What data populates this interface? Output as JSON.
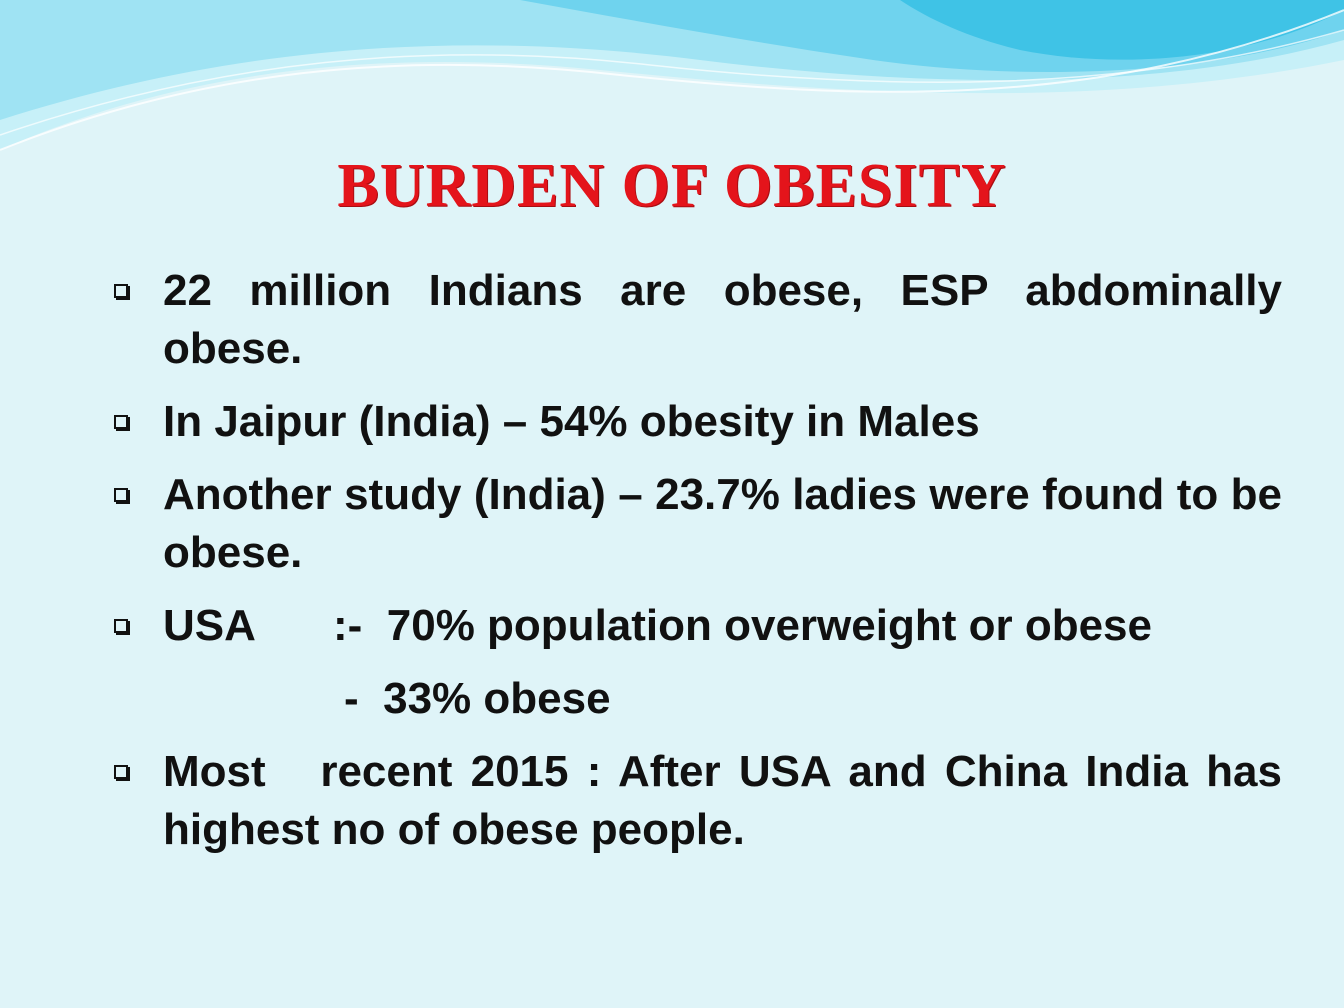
{
  "slide": {
    "title": "BURDEN OF OBESITY",
    "colors": {
      "background": "#dff4f8",
      "title": "#e4141b",
      "text": "#111111",
      "wave_light": "#b9ecf6",
      "wave_mid": "#7fd8ee",
      "wave_dark": "#3fc3e6"
    },
    "marker_icon": "hollow-square-bullet",
    "bullets": [
      {
        "text": "22 million Indians are obese, ESP abdominally obese."
      },
      {
        "text": "In Jaipur (India) – 54% obesity in Males"
      },
      {
        "text": "Another study (India) – 23.7% ladies were found to be obese."
      },
      {
        "label": "USA",
        "separator": ":-",
        "text": "70% population overweight or obese"
      },
      {
        "sub_text": "-  33% obese"
      },
      {
        "text": "Most   recent 2015 : After USA and China India has highest no of obese people."
      }
    ]
  }
}
